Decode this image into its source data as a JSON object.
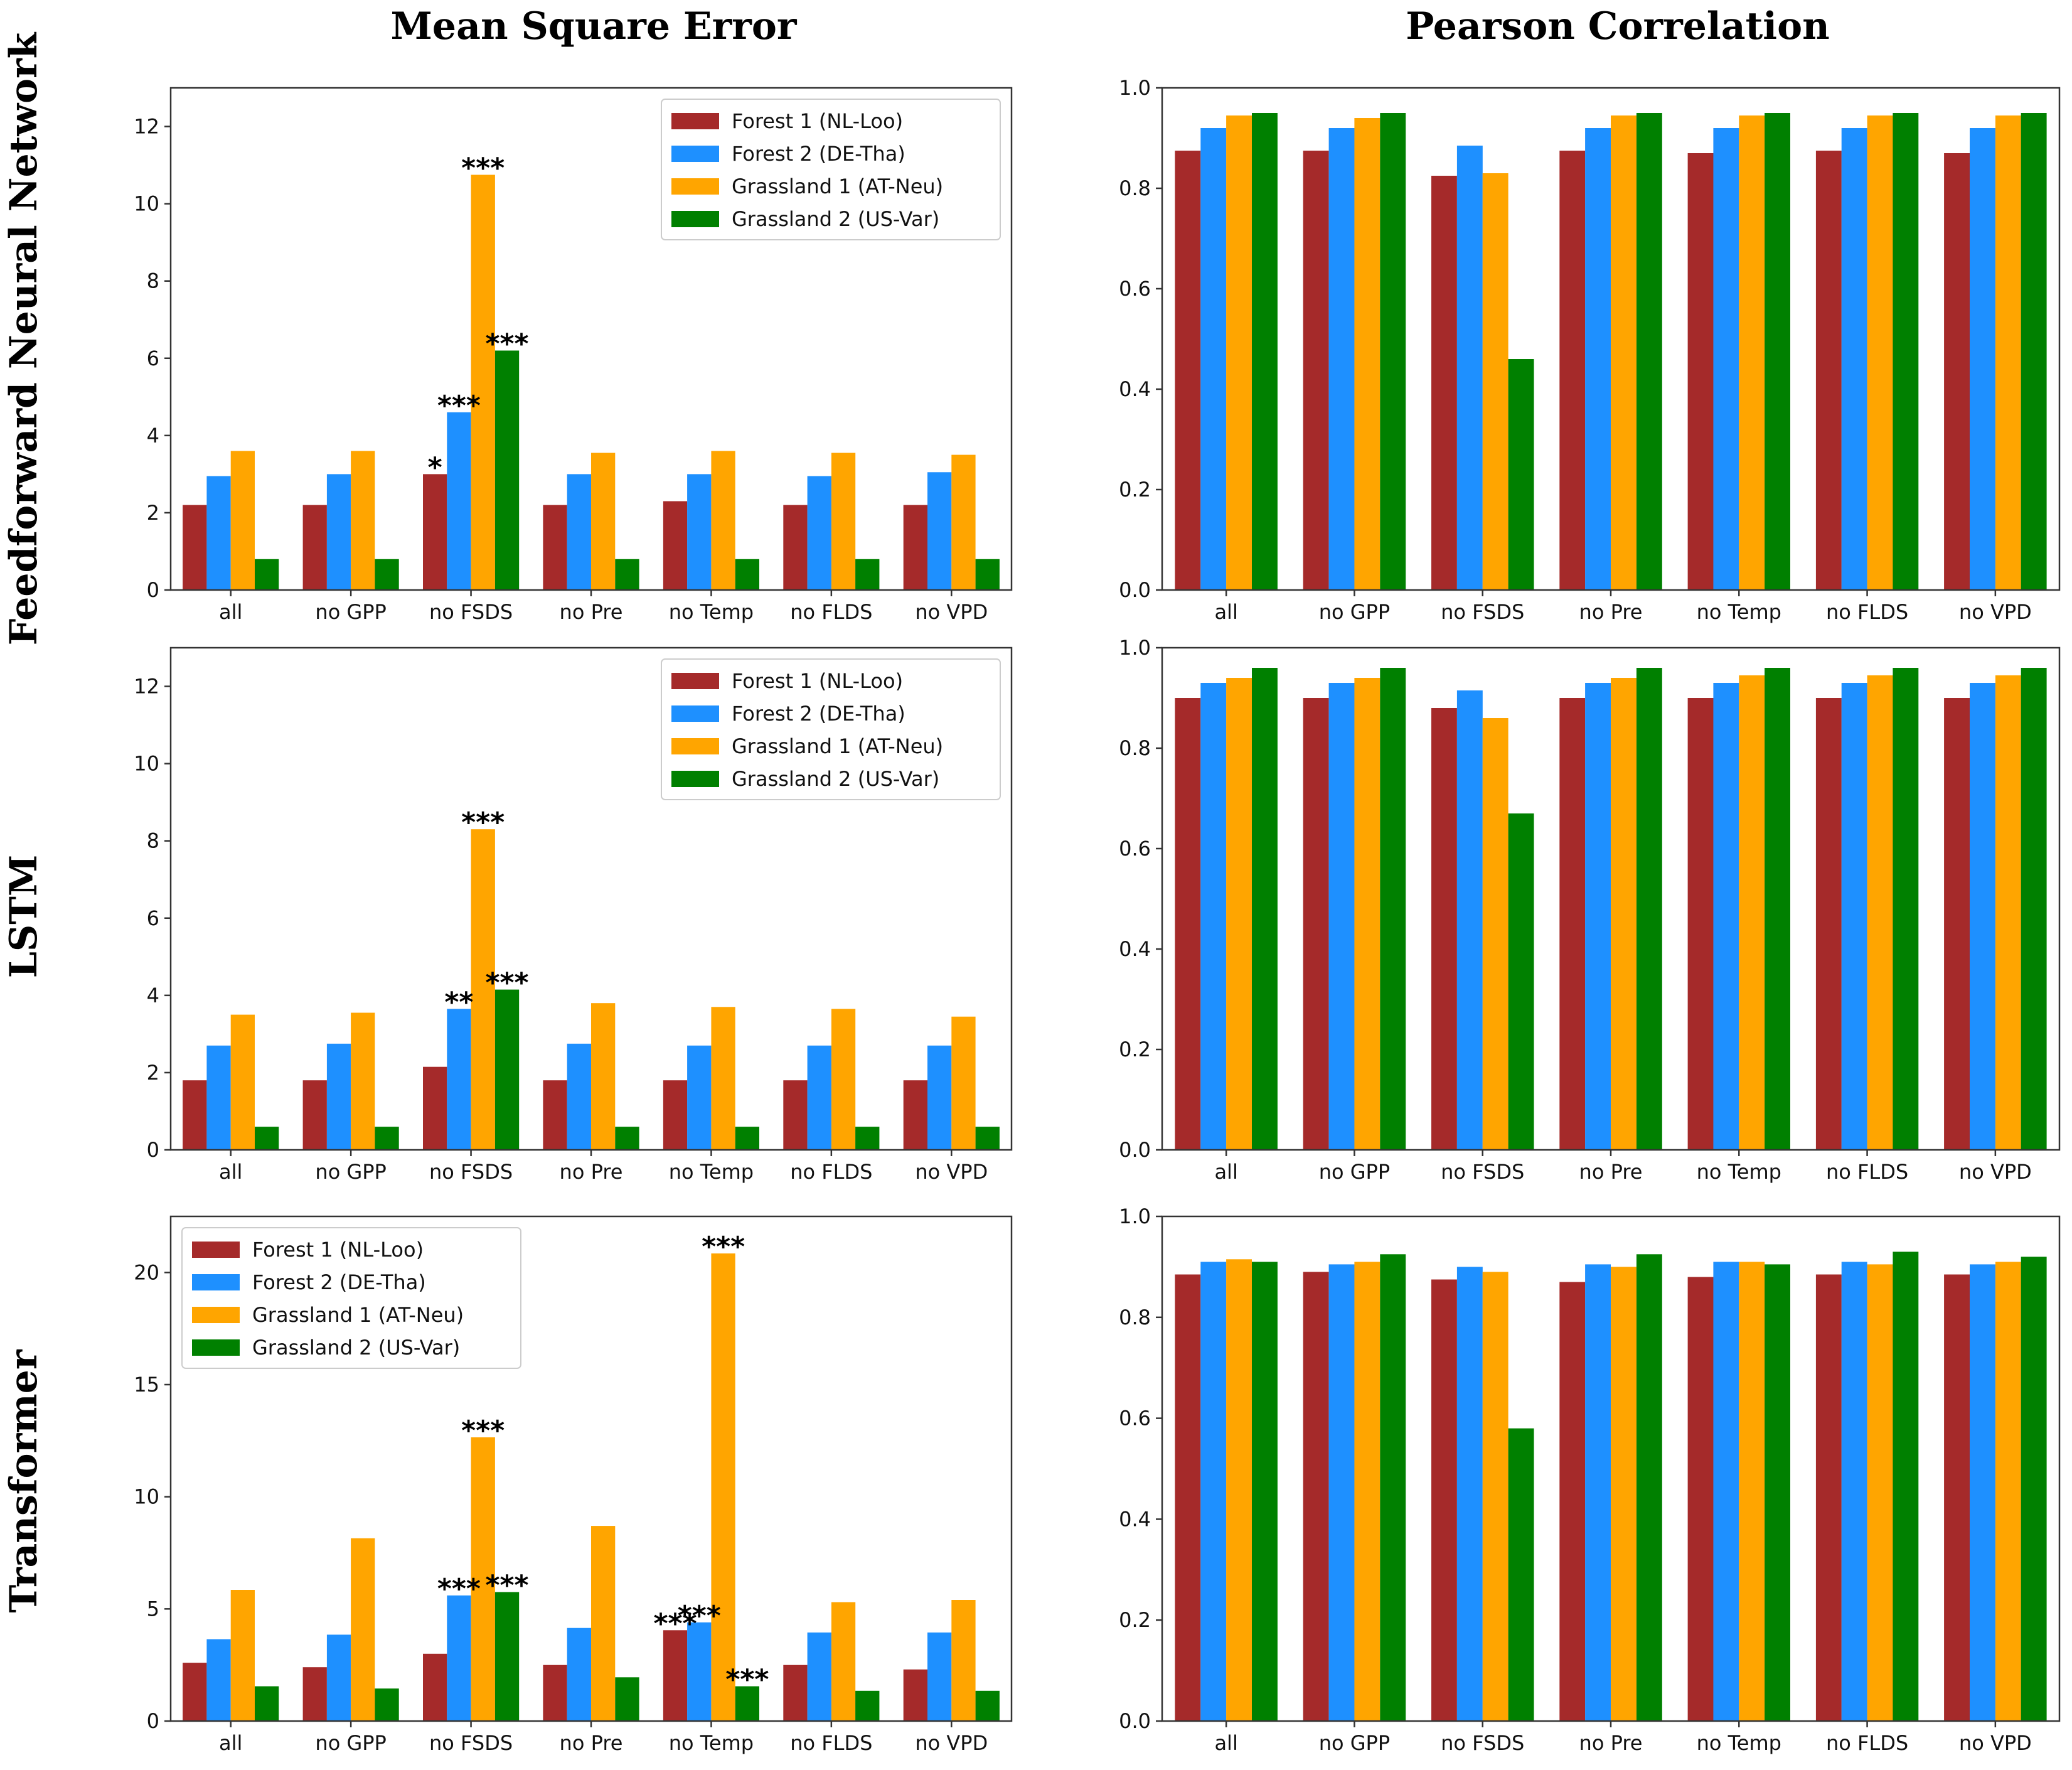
{
  "column_titles": [
    "Mean Square Error",
    "Pearson Correlation"
  ],
  "row_titles": [
    "Feedforward Neural Network",
    "LSTM",
    "Transformer"
  ],
  "series": [
    {
      "name": "Forest 1 (NL-Loo)",
      "color": "#a52a2a"
    },
    {
      "name": "Forest 2 (DE-Tha)",
      "color": "#1e90ff"
    },
    {
      "name": "Grassland 1 (AT-Neu)",
      "color": "#ffa500"
    },
    {
      "name": "Grassland 2 (US-Var)",
      "color": "#008000"
    }
  ],
  "categories": [
    "all",
    "no GPP",
    "no FSDS",
    "no Pre",
    "no Temp",
    "no FLDS",
    "no VPD"
  ],
  "chart_data": [
    {
      "type": "bar",
      "model": "Feedforward Neural Network",
      "metric": "Mean Square Error",
      "ylim": [
        0,
        13
      ],
      "yticks": [
        0,
        2,
        4,
        6,
        8,
        10,
        12
      ],
      "ytick_labels": [
        "0",
        "2",
        "4",
        "6",
        "8",
        "10",
        "12"
      ],
      "legend": "top-right",
      "values": [
        [
          2.2,
          2.2,
          3.0,
          2.2,
          2.3,
          2.2,
          2.2
        ],
        [
          2.95,
          3.0,
          4.6,
          3.0,
          3.0,
          2.95,
          3.05
        ],
        [
          3.6,
          3.6,
          10.75,
          3.55,
          3.6,
          3.55,
          3.5
        ],
        [
          0.8,
          0.8,
          6.2,
          0.8,
          0.8,
          0.8,
          0.8
        ]
      ],
      "annotations": [
        {
          "category": 2,
          "series": 0,
          "text": "*"
        },
        {
          "category": 2,
          "series": 1,
          "text": "***"
        },
        {
          "category": 2,
          "series": 2,
          "text": "***"
        },
        {
          "category": 2,
          "series": 3,
          "text": "***"
        }
      ]
    },
    {
      "type": "bar",
      "model": "Feedforward Neural Network",
      "metric": "Pearson Correlation",
      "ylim": [
        0,
        1.0
      ],
      "yticks": [
        0,
        0.2,
        0.4,
        0.6,
        0.8,
        1.0
      ],
      "ytick_labels": [
        "0.0",
        "0.2",
        "0.4",
        "0.6",
        "0.8",
        "1.0"
      ],
      "values": [
        [
          0.875,
          0.875,
          0.825,
          0.875,
          0.87,
          0.875,
          0.87
        ],
        [
          0.92,
          0.92,
          0.885,
          0.92,
          0.92,
          0.92,
          0.92
        ],
        [
          0.945,
          0.94,
          0.83,
          0.945,
          0.945,
          0.945,
          0.945
        ],
        [
          0.95,
          0.95,
          0.46,
          0.95,
          0.95,
          0.95,
          0.95
        ]
      ],
      "annotations": []
    },
    {
      "type": "bar",
      "model": "LSTM",
      "metric": "Mean Square Error",
      "ylim": [
        0,
        13
      ],
      "yticks": [
        0,
        2,
        4,
        6,
        8,
        10,
        12
      ],
      "ytick_labels": [
        "0",
        "2",
        "4",
        "6",
        "8",
        "10",
        "12"
      ],
      "legend": "top-right",
      "values": [
        [
          1.8,
          1.8,
          2.15,
          1.8,
          1.8,
          1.8,
          1.8
        ],
        [
          2.7,
          2.75,
          3.65,
          2.75,
          2.7,
          2.7,
          2.7
        ],
        [
          3.5,
          3.55,
          8.3,
          3.8,
          3.7,
          3.65,
          3.45
        ],
        [
          0.6,
          0.6,
          4.15,
          0.6,
          0.6,
          0.6,
          0.6
        ]
      ],
      "annotations": [
        {
          "category": 2,
          "series": 1,
          "text": "**"
        },
        {
          "category": 2,
          "series": 2,
          "text": "***"
        },
        {
          "category": 2,
          "series": 3,
          "text": "***"
        }
      ]
    },
    {
      "type": "bar",
      "model": "LSTM",
      "metric": "Pearson Correlation",
      "ylim": [
        0,
        1.0
      ],
      "yticks": [
        0,
        0.2,
        0.4,
        0.6,
        0.8,
        1.0
      ],
      "ytick_labels": [
        "0.0",
        "0.2",
        "0.4",
        "0.6",
        "0.8",
        "1.0"
      ],
      "values": [
        [
          0.9,
          0.9,
          0.88,
          0.9,
          0.9,
          0.9,
          0.9
        ],
        [
          0.93,
          0.93,
          0.915,
          0.93,
          0.93,
          0.93,
          0.93
        ],
        [
          0.94,
          0.94,
          0.86,
          0.94,
          0.945,
          0.945,
          0.945
        ],
        [
          0.96,
          0.96,
          0.67,
          0.96,
          0.96,
          0.96,
          0.96
        ]
      ],
      "annotations": []
    },
    {
      "type": "bar",
      "model": "Transformer",
      "metric": "Mean Square Error",
      "ylim": [
        0,
        22.5
      ],
      "yticks": [
        0,
        5,
        10,
        15,
        20
      ],
      "ytick_labels": [
        "0",
        "5",
        "10",
        "15",
        "20"
      ],
      "legend": "top-left",
      "values": [
        [
          2.6,
          2.4,
          3.0,
          2.5,
          4.05,
          2.5,
          2.3
        ],
        [
          3.65,
          3.85,
          5.6,
          4.15,
          4.4,
          3.95,
          3.95
        ],
        [
          5.85,
          8.15,
          12.65,
          8.7,
          20.85,
          5.3,
          5.4
        ],
        [
          1.55,
          1.45,
          5.75,
          1.95,
          1.55,
          1.35,
          1.35
        ]
      ],
      "annotations": [
        {
          "category": 2,
          "series": 1,
          "text": "***"
        },
        {
          "category": 2,
          "series": 2,
          "text": "***"
        },
        {
          "category": 2,
          "series": 3,
          "text": "***"
        },
        {
          "category": 4,
          "series": 0,
          "text": "***"
        },
        {
          "category": 4,
          "series": 1,
          "text": "***"
        },
        {
          "category": 4,
          "series": 2,
          "text": "***"
        },
        {
          "category": 4,
          "series": 3,
          "text": "***"
        }
      ]
    },
    {
      "type": "bar",
      "model": "Transformer",
      "metric": "Pearson Correlation",
      "ylim": [
        0,
        1.0
      ],
      "yticks": [
        0,
        0.2,
        0.4,
        0.6,
        0.8,
        1.0
      ],
      "ytick_labels": [
        "0.0",
        "0.2",
        "0.4",
        "0.6",
        "0.8",
        "1.0"
      ],
      "values": [
        [
          0.885,
          0.89,
          0.875,
          0.87,
          0.88,
          0.885,
          0.885
        ],
        [
          0.91,
          0.905,
          0.9,
          0.905,
          0.91,
          0.91,
          0.905
        ],
        [
          0.915,
          0.91,
          0.89,
          0.9,
          0.91,
          0.905,
          0.91
        ],
        [
          0.91,
          0.925,
          0.58,
          0.925,
          0.905,
          0.93,
          0.92
        ]
      ],
      "annotations": []
    }
  ]
}
